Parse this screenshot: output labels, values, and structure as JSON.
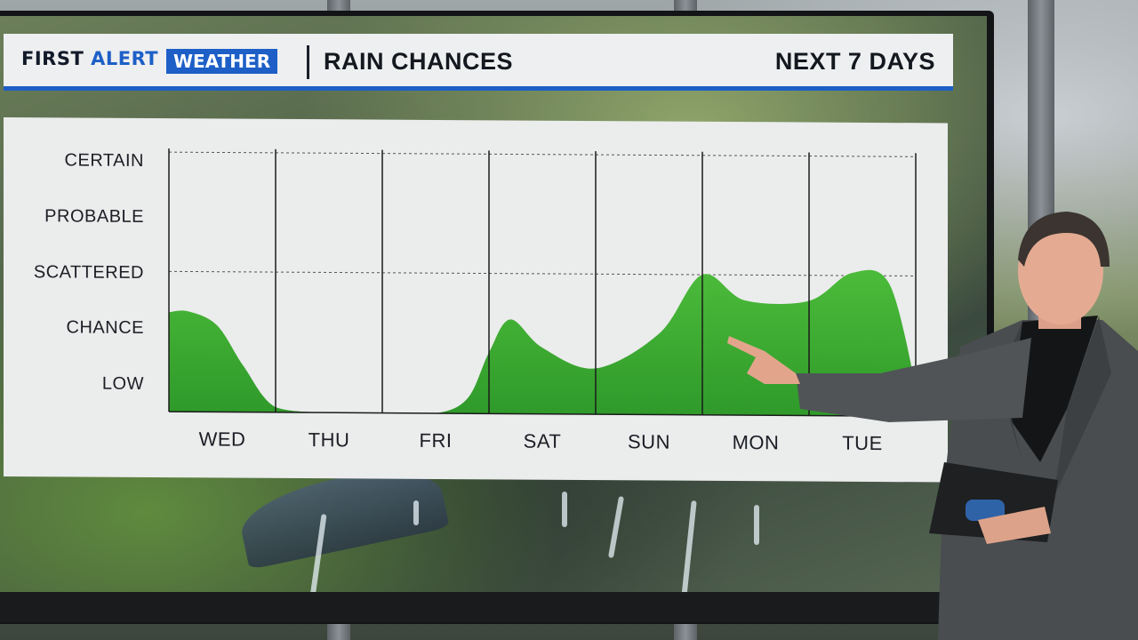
{
  "header": {
    "brand_first": "FIRST ",
    "brand_alert": "ALERT",
    "brand_weather": "WEATHER",
    "title": "RAIN CHANCES",
    "right": "NEXT 7 DAYS"
  },
  "colors": {
    "brand_blue": "#1d5fc7",
    "fill_green": "#3aa532",
    "panel": "#ebecec"
  },
  "chart_data": {
    "type": "area",
    "title": "RAIN CHANCES",
    "categories": [
      "WED",
      "THU",
      "FRI",
      "SAT",
      "SUN",
      "MON",
      "TUE"
    ],
    "y_levels": [
      "LOW",
      "CHANCE",
      "SCATTERED",
      "PROBABLE",
      "CERTAIN"
    ],
    "ylim": [
      0,
      5
    ],
    "gridlines_at": [
      "SCATTERED",
      "CERTAIN"
    ],
    "x": [
      0.0,
      0.18,
      0.45,
      0.7,
      1.0,
      1.5,
      2.0,
      2.5,
      2.8,
      3.0,
      3.2,
      3.5,
      4.0,
      4.6,
      5.0,
      5.4,
      6.0,
      6.4,
      6.75,
      7.0
    ],
    "values": [
      1.95,
      1.97,
      1.7,
      0.9,
      0.1,
      0.0,
      0.0,
      0.0,
      0.3,
      1.2,
      1.85,
      1.3,
      0.9,
      1.6,
      2.75,
      2.25,
      2.25,
      2.8,
      2.6,
      0.6
    ],
    "series": [
      {
        "name": "",
        "values": [
          1.95,
          1.97,
          1.7,
          0.9,
          0.1,
          0.0,
          0.0,
          0.0,
          0.3,
          1.2,
          1.85,
          1.3,
          0.9,
          1.6,
          2.75,
          2.25,
          2.25,
          2.8,
          2.6,
          0.6
        ]
      }
    ],
    "grid": true,
    "legend": "none"
  }
}
